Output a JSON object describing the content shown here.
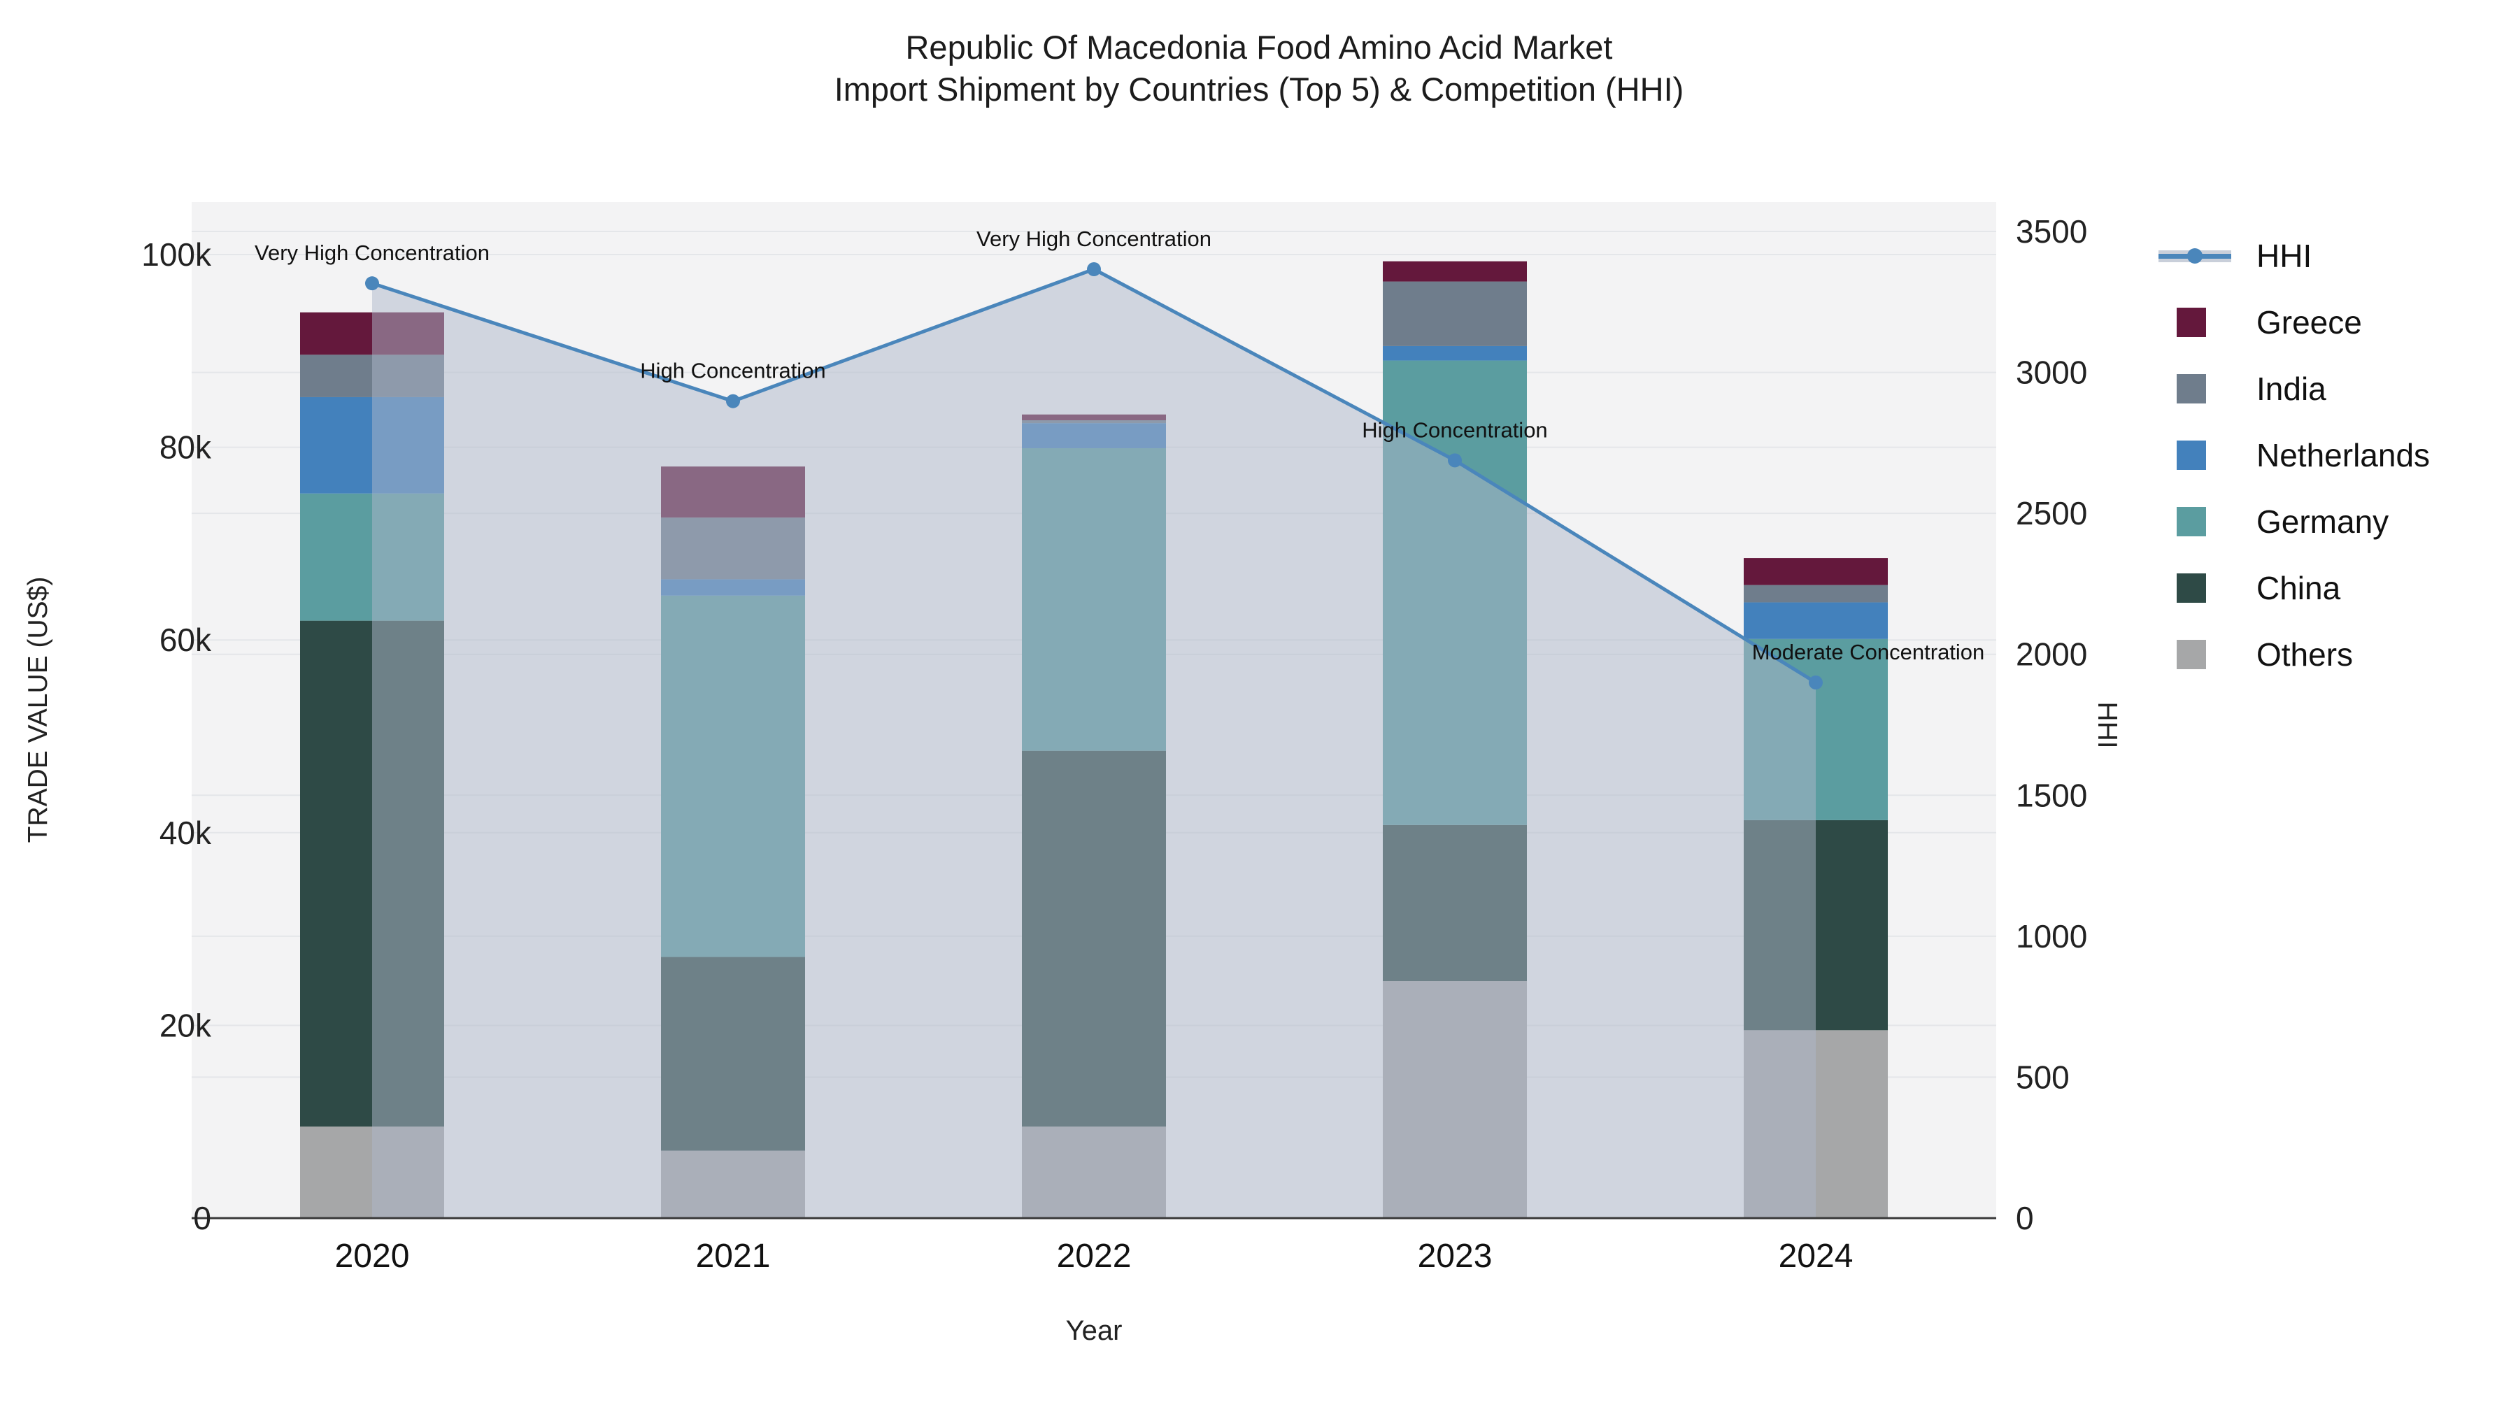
{
  "title": {
    "line1": "Republic Of Macedonia Food Amino Acid Market",
    "line2": "Import Shipment by Countries (Top 5) & Competition (HHI)"
  },
  "axes": {
    "y_left": {
      "label": "TRADE VALUE (US$)",
      "tick_labels": [
        "0",
        "20k",
        "40k",
        "60k",
        "80k",
        "100k"
      ],
      "tick_values": [
        0,
        20000,
        40000,
        60000,
        80000,
        100000
      ],
      "max": 100000
    },
    "y_right": {
      "label": "HHI",
      "tick_labels": [
        "0",
        "500",
        "1000",
        "1500",
        "2000",
        "2500",
        "3000",
        "3500"
      ],
      "tick_values": [
        0,
        500,
        1000,
        1500,
        2000,
        2500,
        3000,
        3500
      ],
      "max": 3500
    },
    "x": {
      "label": "Year",
      "categories": [
        "2020",
        "2021",
        "2022",
        "2023",
        "2024"
      ]
    }
  },
  "legend_items": [
    {
      "label": "HHI",
      "type": "line",
      "color": "#4a86bb"
    },
    {
      "label": "Greece",
      "type": "swatch",
      "color": "#64183c"
    },
    {
      "label": "India",
      "type": "swatch",
      "color": "#6f7d8c"
    },
    {
      "label": "Netherlands",
      "type": "swatch",
      "color": "#4381bc"
    },
    {
      "label": "Germany",
      "type": "swatch",
      "color": "#5b9da0"
    },
    {
      "label": "China",
      "type": "swatch",
      "color": "#2e4a46"
    },
    {
      "label": "Others",
      "type": "swatch",
      "color": "#a6a7a8"
    }
  ],
  "colors": {
    "hhi_line": "#4a86bb",
    "area_fill": "rgba(174,184,202,0.5)",
    "plot_bg": "#f3f3f4",
    "gridline": "#e4e6e9",
    "axis_line": "#3a3a3a",
    "Greece": "#64183c",
    "India": "#6f7d8c",
    "Netherlands": "#4381bc",
    "Germany": "#5b9da0",
    "China": "#2e4a46",
    "Others": "#a6a7a8"
  },
  "chart_data": {
    "type": "bar",
    "subtype": "stacked bars with secondary-axis line (HHI)",
    "title": "Republic Of Macedonia Food Amino Acid Market — Import Shipment by Countries (Top 5) & Competition (HHI)",
    "xlabel": "Year",
    "ylabel_left": "TRADE VALUE (US$)",
    "ylabel_right": "HHI",
    "ylim_left": [
      0,
      100000
    ],
    "ylim_right": [
      0,
      3500
    ],
    "grid": true,
    "legend_position": "right",
    "categories": [
      "2020",
      "2021",
      "2022",
      "2023",
      "2024"
    ],
    "series": [
      {
        "name": "Others",
        "axis": "left",
        "values": [
          9500,
          7000,
          9500,
          24600,
          19500
        ]
      },
      {
        "name": "China",
        "axis": "left",
        "values": [
          52500,
          20100,
          39000,
          16200,
          21800
        ]
      },
      {
        "name": "Germany",
        "axis": "left",
        "values": [
          13200,
          37500,
          31400,
          48200,
          18800
        ]
      },
      {
        "name": "Netherlands",
        "axis": "left",
        "values": [
          10000,
          1700,
          2600,
          1500,
          3800
        ]
      },
      {
        "name": "India",
        "axis": "left",
        "values": [
          4400,
          6400,
          300,
          6700,
          1800
        ]
      },
      {
        "name": "Greece",
        "axis": "left",
        "values": [
          4400,
          5300,
          600,
          2100,
          2800
        ]
      }
    ],
    "bar_totals": [
      94000,
      78000,
      83400,
      99300,
      68500
    ],
    "line_series": {
      "name": "HHI",
      "axis": "right",
      "values": [
        3316,
        2898,
        3366,
        2688,
        1900
      ],
      "has_area_fill": true
    },
    "annotations": [
      {
        "x": "2020",
        "text": "Very High Concentration"
      },
      {
        "x": "2021",
        "text": "High Concentration"
      },
      {
        "x": "2022",
        "text": "Very High Concentration"
      },
      {
        "x": "2023",
        "text": "High Concentration"
      },
      {
        "x": "2024",
        "text": "Moderate Concentration"
      }
    ]
  }
}
